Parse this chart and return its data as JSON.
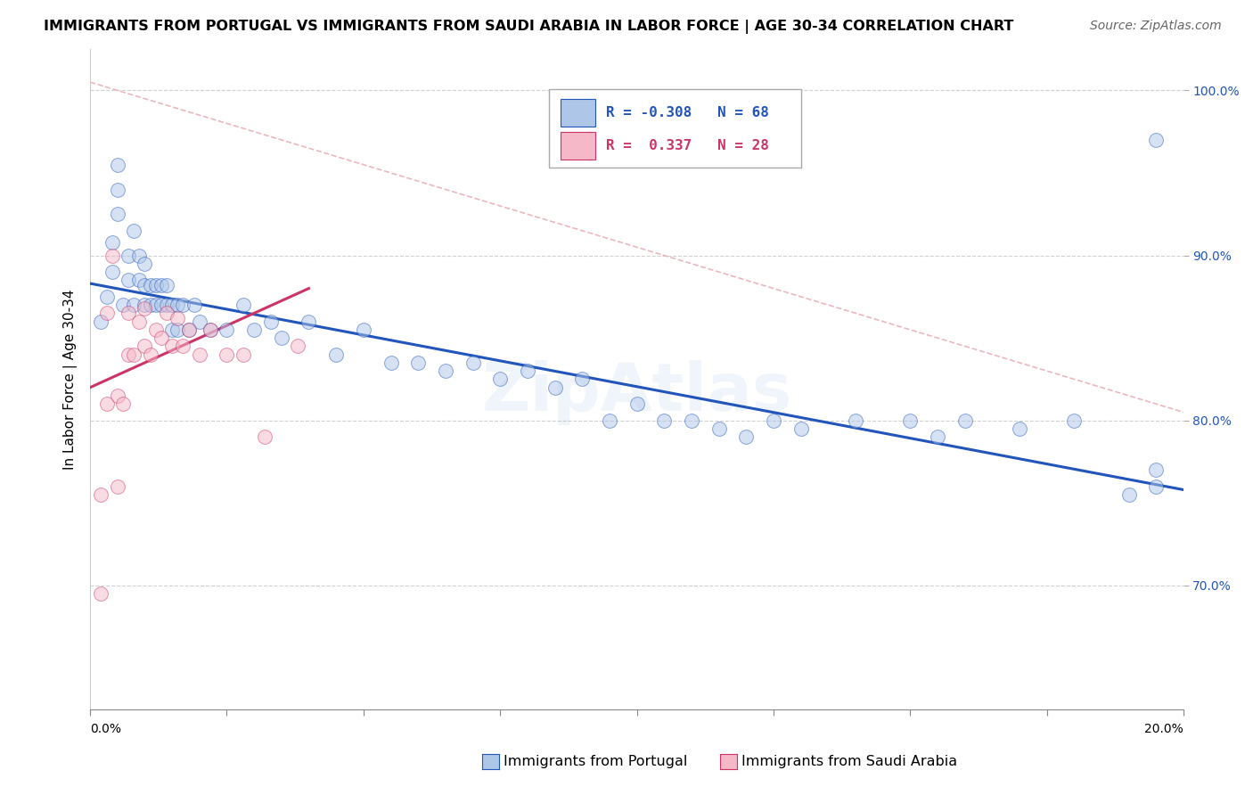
{
  "title": "IMMIGRANTS FROM PORTUGAL VS IMMIGRANTS FROM SAUDI ARABIA IN LABOR FORCE | AGE 30-34 CORRELATION CHART",
  "source": "Source: ZipAtlas.com",
  "ylabel": "In Labor Force | Age 30-34",
  "legend_blue_r": "-0.308",
  "legend_blue_n": "68",
  "legend_pink_r": "0.337",
  "legend_pink_n": "28",
  "legend_blue_label": "Immigrants from Portugal",
  "legend_pink_label": "Immigrants from Saudi Arabia",
  "blue_color": "#aec6e8",
  "pink_color": "#f4b8c8",
  "blue_line_color": "#2255bb",
  "pink_line_color": "#cc3366",
  "ref_line_color": "#e8b0b8",
  "xmin": 0.0,
  "xmax": 0.2,
  "ymin": 0.625,
  "ymax": 1.025,
  "yticks": [
    0.7,
    0.8,
    0.9,
    1.0
  ],
  "ytick_labels": [
    "70.0%",
    "80.0%",
    "90.0%",
    "100.0%"
  ],
  "xtick_positions": [
    0.0,
    0.025,
    0.05,
    0.075,
    0.1,
    0.125,
    0.15,
    0.175,
    0.2
  ],
  "blue_points_x": [
    0.002,
    0.003,
    0.004,
    0.004,
    0.005,
    0.005,
    0.005,
    0.006,
    0.007,
    0.007,
    0.008,
    0.008,
    0.009,
    0.009,
    0.01,
    0.01,
    0.01,
    0.011,
    0.011,
    0.012,
    0.012,
    0.013,
    0.013,
    0.014,
    0.014,
    0.015,
    0.015,
    0.016,
    0.016,
    0.017,
    0.018,
    0.019,
    0.02,
    0.022,
    0.025,
    0.028,
    0.03,
    0.033,
    0.035,
    0.04,
    0.045,
    0.05,
    0.055,
    0.06,
    0.065,
    0.07,
    0.075,
    0.08,
    0.085,
    0.09,
    0.095,
    0.1,
    0.105,
    0.11,
    0.115,
    0.12,
    0.125,
    0.13,
    0.14,
    0.15,
    0.155,
    0.16,
    0.17,
    0.18,
    0.19,
    0.195,
    0.195,
    0.195
  ],
  "blue_points_y": [
    0.86,
    0.875,
    0.89,
    0.908,
    0.925,
    0.94,
    0.955,
    0.87,
    0.885,
    0.9,
    0.915,
    0.87,
    0.885,
    0.9,
    0.87,
    0.882,
    0.895,
    0.87,
    0.882,
    0.87,
    0.882,
    0.87,
    0.882,
    0.87,
    0.882,
    0.87,
    0.855,
    0.87,
    0.855,
    0.87,
    0.855,
    0.87,
    0.86,
    0.855,
    0.855,
    0.87,
    0.855,
    0.86,
    0.85,
    0.86,
    0.84,
    0.855,
    0.835,
    0.835,
    0.83,
    0.835,
    0.825,
    0.83,
    0.82,
    0.825,
    0.8,
    0.81,
    0.8,
    0.8,
    0.795,
    0.79,
    0.8,
    0.795,
    0.8,
    0.8,
    0.79,
    0.8,
    0.795,
    0.8,
    0.755,
    0.76,
    0.77,
    0.97
  ],
  "pink_points_x": [
    0.002,
    0.002,
    0.003,
    0.003,
    0.004,
    0.005,
    0.005,
    0.006,
    0.007,
    0.007,
    0.008,
    0.009,
    0.01,
    0.01,
    0.011,
    0.012,
    0.013,
    0.014,
    0.015,
    0.016,
    0.017,
    0.018,
    0.02,
    0.022,
    0.025,
    0.028,
    0.032,
    0.038
  ],
  "pink_points_y": [
    0.695,
    0.755,
    0.81,
    0.865,
    0.9,
    0.76,
    0.815,
    0.81,
    0.84,
    0.865,
    0.84,
    0.86,
    0.845,
    0.868,
    0.84,
    0.855,
    0.85,
    0.865,
    0.845,
    0.862,
    0.845,
    0.855,
    0.84,
    0.855,
    0.84,
    0.84,
    0.79,
    0.845
  ],
  "blue_line_x": [
    0.0,
    0.2
  ],
  "blue_line_y": [
    0.883,
    0.758
  ],
  "pink_line_x": [
    0.0,
    0.04
  ],
  "pink_line_y": [
    0.82,
    0.88
  ],
  "ref_line_x": [
    0.0,
    0.2
  ],
  "ref_line_y": [
    1.005,
    0.805
  ],
  "marker_size": 130,
  "marker_alpha": 0.5,
  "background_color": "#ffffff",
  "grid_color": "#cccccc",
  "title_fontsize": 11.5,
  "source_fontsize": 10,
  "axis_label_fontsize": 11,
  "tick_fontsize": 10,
  "legend_fontsize": 11.5
}
